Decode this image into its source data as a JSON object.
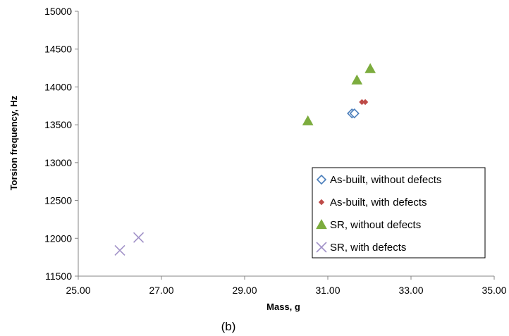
{
  "caption": "(b)",
  "chart_data": {
    "type": "scatter",
    "xlabel": "Mass, g",
    "ylabel": "Torsion frequency, Hz",
    "xlim": [
      25,
      35
    ],
    "ylim": [
      11500,
      15000
    ],
    "x_ticks": [
      "25.00",
      "27.00",
      "29.00",
      "31.00",
      "33.00",
      "35.00"
    ],
    "y_ticks": [
      "11500",
      "12000",
      "12500",
      "13000",
      "13500",
      "14000",
      "14500",
      "15000"
    ],
    "grid": false,
    "legend_position": "lower-right",
    "series": [
      {
        "name": "As-built, without defects",
        "marker": "diamond-open",
        "color": "#4a7ebb",
        "points": [
          [
            31.58,
            13650
          ],
          [
            31.64,
            13650
          ]
        ]
      },
      {
        "name": "As-built, with defects",
        "marker": "diamond-filled",
        "color": "#be4b48",
        "points": [
          [
            31.82,
            13800
          ],
          [
            31.9,
            13800
          ]
        ]
      },
      {
        "name": "SR, without defects",
        "marker": "triangle",
        "color": "#7cac3e",
        "points": [
          [
            30.52,
            13550
          ],
          [
            31.7,
            14090
          ],
          [
            32.02,
            14240
          ]
        ]
      },
      {
        "name": "SR, with defects",
        "marker": "x",
        "color": "#a191c8",
        "points": [
          [
            26.0,
            11840
          ],
          [
            26.45,
            12010
          ]
        ]
      }
    ]
  }
}
